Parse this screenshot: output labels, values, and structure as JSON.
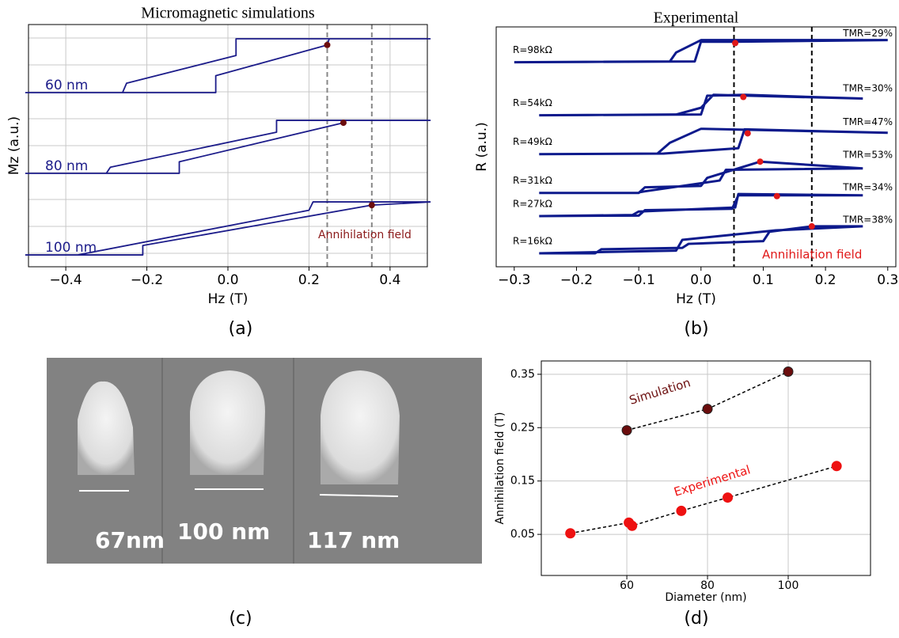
{
  "chart_data": [
    {
      "type": "line",
      "title": "Micromagnetic simulations",
      "x_label": "Hz (T)",
      "y_label": "Mz (a.u.)",
      "xlim": [
        -0.492,
        0.492
      ],
      "ylim": [
        0,
        9
      ],
      "xticks": [
        {
          "value": -0.4,
          "label": "−0.4"
        },
        {
          "value": -0.2,
          "label": "−0.2"
        },
        {
          "value": 0,
          "label": "0.0"
        },
        0.2,
        0.4
      ],
      "ygrid": [
        0.5,
        1.5,
        2.5,
        3.5,
        4.5,
        5.5,
        6.5,
        7.5,
        8.5
      ],
      "grid": true,
      "line_color": "#1c1c8a",
      "series": [
        {
          "name": "60 nm",
          "x": [
            0.5,
            0.02,
            0.02,
            -0.25,
            -0.26,
            -0.5,
            null,
            -0.5,
            -0.03,
            -0.03,
            0.245,
            0.25,
            0.5
          ],
          "y": [
            8.47,
            8.47,
            7.85,
            6.82,
            6.47,
            6.47,
            null,
            6.47,
            6.47,
            7.1,
            8.24,
            8.47,
            8.47
          ]
        },
        {
          "name": "80 nm",
          "x": [
            0.5,
            0.12,
            0.12,
            -0.29,
            -0.3,
            -0.5,
            null,
            -0.5,
            -0.12,
            -0.12,
            0.285,
            0.29,
            0.5
          ],
          "y": [
            5.44,
            5.44,
            5.0,
            3.7,
            3.47,
            3.47,
            null,
            3.47,
            3.47,
            3.9,
            5.35,
            5.44,
            5.44
          ]
        },
        {
          "name": "100 nm",
          "x": [
            0.5,
            0.21,
            0.2,
            -0.37,
            -0.5,
            null,
            -0.5,
            -0.21,
            -0.21,
            0.355,
            0.5
          ],
          "y": [
            2.41,
            2.41,
            2.1,
            0.44,
            0.44,
            null,
            0.44,
            0.44,
            0.79,
            2.29,
            2.41
          ]
        }
      ],
      "points": {
        "x": [
          0.245,
          0.285,
          0.355
        ],
        "y": [
          8.24,
          5.35,
          2.29
        ],
        "color": "#6b0d0d"
      },
      "vlines": [
        0.245,
        0.355
      ],
      "vline_color": "#888888",
      "annotation": "Annihilation field",
      "annotation_color": "#8b1a1a"
    },
    {
      "type": "line",
      "title": "Experimental",
      "x_label": "Hz (T)",
      "y_label": "R (a.u.)",
      "xlim": [
        -0.329,
        0.313
      ],
      "ylim": [
        0,
        8.9
      ],
      "xticks": [
        {
          "value": -0.3,
          "label": "−0.3"
        },
        {
          "value": -0.2,
          "label": "−0.2"
        },
        {
          "value": -0.1,
          "label": "−0.1"
        },
        {
          "value": 0,
          "label": "0.0"
        },
        0.1,
        0.2,
        0.3
      ],
      "grid": false,
      "line_color": "#0d1a8c",
      "series": [
        {
          "name": "R=98kΩ",
          "tmr": "TMR=29%",
          "x": [
            -0.3,
            -0.01,
            0.0,
            0.052,
            0.3,
            null,
            0.3,
            0.0,
            -0.04,
            -0.05,
            -0.3
          ],
          "y": [
            7.59,
            7.62,
            8.35,
            8.35,
            8.41,
            null,
            8.41,
            8.41,
            7.95,
            7.62,
            7.59
          ]
        },
        {
          "name": "R=54kΩ",
          "tmr": "TMR=30%",
          "x": [
            -0.26,
            0.0,
            0.01,
            0.07,
            0.26,
            null,
            0.26,
            0.02,
            0.0,
            -0.04,
            -0.26
          ],
          "y": [
            5.62,
            5.65,
            6.35,
            6.38,
            6.24,
            null,
            6.24,
            6.38,
            5.9,
            5.65,
            5.62
          ]
        },
        {
          "name": "R=49kΩ",
          "tmr": "TMR=47%",
          "x": [
            -0.26,
            -0.06,
            0.06,
            0.07,
            0.3,
            null,
            0.3,
            0.0,
            -0.05,
            -0.07,
            -0.26
          ],
          "y": [
            4.18,
            4.2,
            4.4,
            5.1,
            4.97,
            null,
            4.97,
            5.12,
            4.6,
            4.2,
            4.18
          ]
        },
        {
          "name": "R=31kΩ",
          "tmr": "TMR=53%",
          "x": [
            -0.26,
            -0.1,
            -0.09,
            0.0,
            0.01,
            0.095,
            0.26,
            null,
            0.26,
            0.04,
            0.03,
            -0.09,
            -0.1
          ],
          "y": [
            2.74,
            2.74,
            2.95,
            3.0,
            3.3,
            3.9,
            3.65,
            null,
            3.65,
            3.6,
            3.2,
            2.8,
            2.76
          ]
        },
        {
          "name": "R=27kΩ",
          "tmr": "TMR=34%",
          "x": [
            -0.26,
            -0.1,
            -0.09,
            0.05,
            0.06,
            0.122,
            0.26,
            null,
            0.26,
            0.06,
            0.055,
            -0.1,
            -0.11,
            -0.26
          ],
          "y": [
            1.88,
            1.9,
            2.1,
            2.15,
            2.65,
            2.65,
            2.65,
            null,
            2.65,
            2.7,
            2.2,
            2.05,
            1.92,
            1.88
          ]
        },
        {
          "name": "R=16kΩ",
          "tmr": "TMR=38%",
          "x": [
            -0.26,
            -0.17,
            -0.16,
            -0.03,
            -0.02,
            0.1,
            0.11,
            0.178,
            0.26,
            null,
            0.26,
            0.12,
            -0.03,
            -0.04,
            -0.26
          ],
          "y": [
            0.5,
            0.5,
            0.65,
            0.7,
            0.85,
            0.95,
            1.3,
            1.5,
            1.5,
            null,
            1.5,
            1.35,
            1.0,
            0.6,
            0.5
          ]
        }
      ],
      "points": {
        "x": [
          0.055,
          0.068,
          0.075,
          0.095,
          0.122,
          0.178
        ],
        "y": [
          8.3,
          6.3,
          4.95,
          3.9,
          2.62,
          1.5
        ],
        "color": "#e01818"
      },
      "vlines": [
        0.053,
        0.178
      ],
      "vline_color": "#000000",
      "annotation": "Annihilation field",
      "annotation_color": "#e01818"
    },
    {
      "type": "scatter",
      "x_label": "Diameter (nm)",
      "y_label": "Annihilation field (T)",
      "xlim": [
        38.8,
        120.4
      ],
      "ylim": [
        -0.027,
        0.375
      ],
      "xticks": [
        60,
        80,
        100
      ],
      "yticks": [
        0.05,
        0.15,
        0.25,
        0.35
      ],
      "grid": true,
      "series": [
        {
          "name": "Simulation",
          "color": "#6b0d0d",
          "x": [
            60,
            80,
            100
          ],
          "values": [
            0.245,
            0.285,
            0.355
          ]
        },
        {
          "name": "Experimental",
          "color": "#ee1111",
          "x": [
            46,
            60.5,
            61.3,
            73.5,
            85,
            112
          ],
          "values": [
            0.052,
            0.072,
            0.066,
            0.094,
            0.119,
            0.178
          ]
        }
      ]
    }
  ],
  "image": {
    "labels": [
      "67nm",
      "100 nm",
      "117 nm"
    ]
  },
  "captions": [
    "(a)",
    "(b)",
    "(c)",
    "(d)"
  ]
}
